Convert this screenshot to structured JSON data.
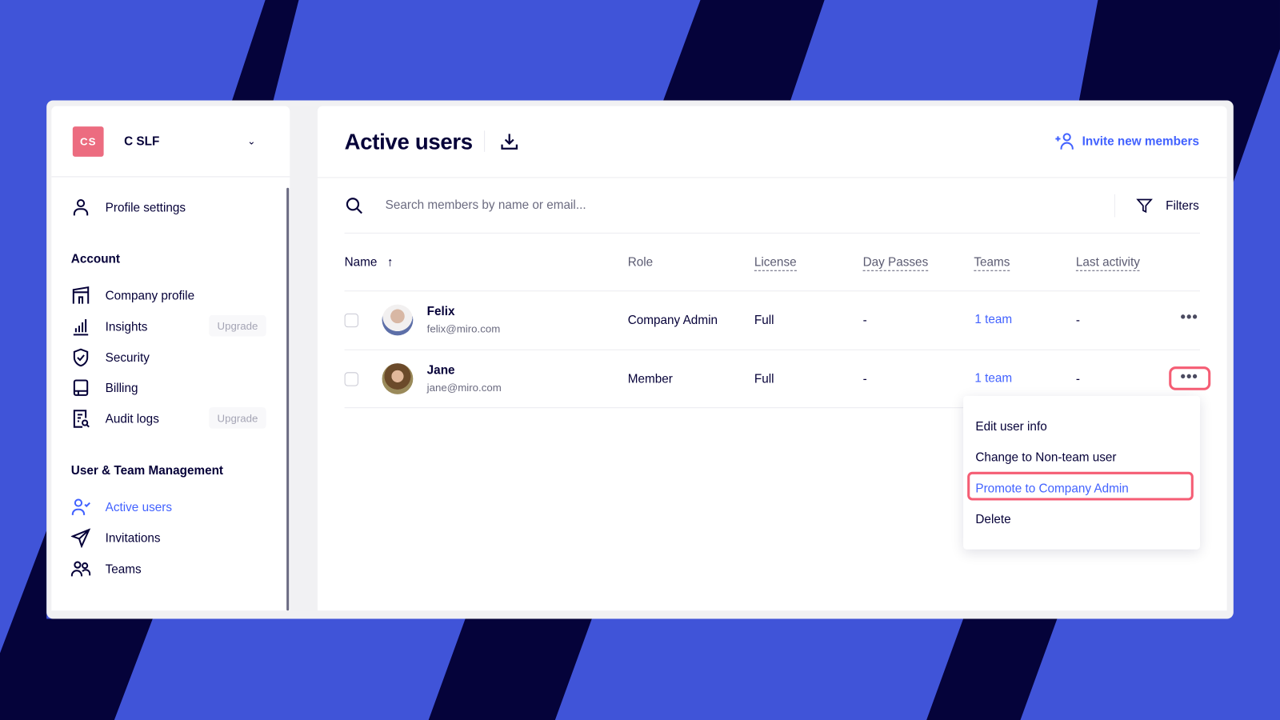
{
  "colors": {
    "background": "#4054d8",
    "stripes": "#05033a",
    "accent": "#4262ff",
    "highlight": "#f55d74",
    "org_badge": "#ec6c80"
  },
  "org": {
    "initials": "CS",
    "name": "C SLF"
  },
  "sidebar": {
    "profile_settings": "Profile settings",
    "account_heading": "Account",
    "account_items": [
      {
        "label": "Company profile",
        "icon": "building-icon"
      },
      {
        "label": "Insights",
        "icon": "bar-chart-icon",
        "badge": "Upgrade"
      },
      {
        "label": "Security",
        "icon": "shield-icon"
      },
      {
        "label": "Billing",
        "icon": "billing-icon"
      },
      {
        "label": "Audit logs",
        "icon": "audit-log-icon",
        "badge": "Upgrade"
      }
    ],
    "utm_heading": "User & Team Management",
    "utm_items": [
      {
        "label": "Active users",
        "icon": "user-check-icon",
        "active": true
      },
      {
        "label": "Invitations",
        "icon": "paper-plane-icon"
      },
      {
        "label": "Teams",
        "icon": "users-icon"
      }
    ]
  },
  "main": {
    "title": "Active users",
    "invite_label": "Invite new members",
    "search_placeholder": "Search members by name or email...",
    "filters_label": "Filters",
    "columns": [
      "Name",
      "Role",
      "License",
      "Day Passes",
      "Teams",
      "Last activity"
    ],
    "sort": "ascending",
    "rows": [
      {
        "name": "Felix",
        "email": "felix@miro.com",
        "role": "Company Admin",
        "license": "Full",
        "day_passes": "-",
        "teams": "1 team",
        "last_activity": "-"
      },
      {
        "name": "Jane",
        "email": "jane@miro.com",
        "role": "Member",
        "license": "Full",
        "day_passes": "-",
        "teams": "1 team",
        "last_activity": "-"
      }
    ],
    "menu": [
      "Edit user info",
      "Change to Non-team user",
      "Promote to Company Admin",
      "Delete"
    ],
    "highlighted_menu_item": "Promote to Company Admin"
  }
}
